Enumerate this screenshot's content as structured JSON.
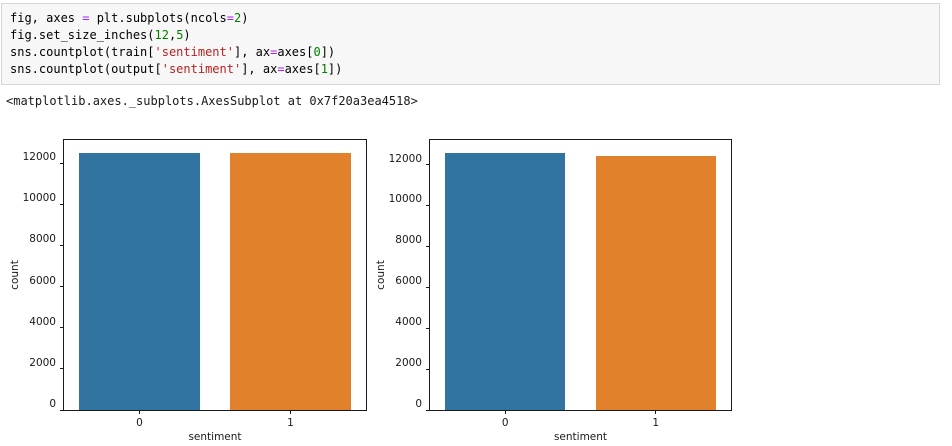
{
  "notebook": {
    "cell": {
      "background": "#f7f7f7",
      "border_color": "#d7d7d7",
      "language": "python",
      "code_lines": [
        [
          {
            "t": "fig, axes ",
            "y": "p"
          },
          {
            "t": "=",
            "y": "op"
          },
          {
            "t": " plt.subplots(ncols",
            "y": "p"
          },
          {
            "t": "=",
            "y": "op"
          },
          {
            "t": "2",
            "y": "num"
          },
          {
            "t": ")",
            "y": "p"
          }
        ],
        [
          {
            "t": "fig.set_size_inches(",
            "y": "p"
          },
          {
            "t": "12",
            "y": "num"
          },
          {
            "t": ",",
            "y": "p"
          },
          {
            "t": "5",
            "y": "num"
          },
          {
            "t": ")",
            "y": "p"
          }
        ],
        [
          {
            "t": "sns.countplot(train[",
            "y": "p"
          },
          {
            "t": "'sentiment'",
            "y": "str"
          },
          {
            "t": "], ax",
            "y": "p"
          },
          {
            "t": "=",
            "y": "op"
          },
          {
            "t": "axes[",
            "y": "p"
          },
          {
            "t": "0",
            "y": "num"
          },
          {
            "t": "])",
            "y": "p"
          }
        ],
        [
          {
            "t": "sns.countplot(output[",
            "y": "p"
          },
          {
            "t": "'sentiment'",
            "y": "str"
          },
          {
            "t": "], ax",
            "y": "p"
          },
          {
            "t": "=",
            "y": "op"
          },
          {
            "t": "axes[",
            "y": "p"
          },
          {
            "t": "1",
            "y": "num"
          },
          {
            "t": "])",
            "y": "p"
          }
        ]
      ],
      "syntax_colors": {
        "plain": "#000000",
        "operator": "#aa22ff",
        "number": "#008000",
        "string": "#ba2121"
      }
    },
    "execution_result": "<matplotlib.axes._subplots.AxesSubplot at 0x7f20a3ea4518>"
  },
  "chart_data": [
    {
      "type": "bar",
      "title": "",
      "categories": [
        "0",
        "1"
      ],
      "values": [
        12500,
        12500
      ],
      "xlabel": "sentiment",
      "ylabel": "count",
      "yticks": [
        0,
        2000,
        4000,
        6000,
        8000,
        10000,
        12000
      ],
      "ylim": [
        0,
        13125
      ],
      "grid": false,
      "legend": "none",
      "bar_colors": [
        "#3274a1",
        "#e1812c"
      ]
    },
    {
      "type": "bar",
      "title": "",
      "categories": [
        "0",
        "1"
      ],
      "values": [
        12570,
        12430
      ],
      "xlabel": "sentiment",
      "ylabel": "count",
      "yticks": [
        0,
        2000,
        4000,
        6000,
        8000,
        10000,
        12000
      ],
      "ylim": [
        0,
        13199
      ],
      "grid": false,
      "legend": "none",
      "bar_colors": [
        "#3274a1",
        "#e1812c"
      ]
    }
  ]
}
